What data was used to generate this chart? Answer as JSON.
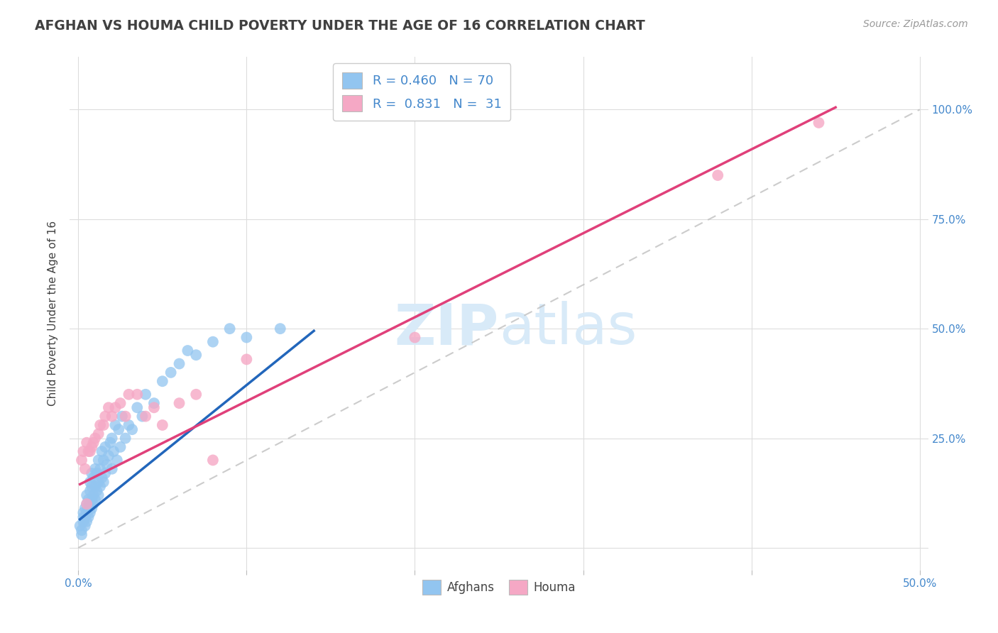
{
  "title": "AFGHAN VS HOUMA CHILD POVERTY UNDER THE AGE OF 16 CORRELATION CHART",
  "source": "Source: ZipAtlas.com",
  "ylabel": "Child Poverty Under the Age of 16",
  "xlim": [
    -0.005,
    0.505
  ],
  "ylim": [
    -0.05,
    1.12
  ],
  "xticks": [
    0.0,
    0.1,
    0.2,
    0.3,
    0.4,
    0.5
  ],
  "xticklabels": [
    "0.0%",
    "",
    "",
    "",
    "",
    "50.0%"
  ],
  "yticks": [
    0.0,
    0.25,
    0.5,
    0.75,
    1.0
  ],
  "yticklabels": [
    "",
    "25.0%",
    "50.0%",
    "75.0%",
    "100.0%"
  ],
  "afghan_R": 0.46,
  "afghan_N": 70,
  "houma_R": 0.831,
  "houma_N": 31,
  "afghan_color": "#92C5F0",
  "houma_color": "#F5A8C5",
  "afghan_line_color": "#2266BB",
  "houma_line_color": "#E0407A",
  "ref_line_color": "#BBBBBB",
  "grid_color": "#DDDDDD",
  "title_color": "#404040",
  "axis_label_color": "#4488CC",
  "watermark_color": "#D8EAF8",
  "legend_label1": "Afghans",
  "legend_label2": "Houma",
  "afghan_x": [
    0.001,
    0.002,
    0.002,
    0.003,
    0.003,
    0.003,
    0.004,
    0.004,
    0.004,
    0.005,
    0.005,
    0.005,
    0.005,
    0.006,
    0.006,
    0.006,
    0.007,
    0.007,
    0.007,
    0.007,
    0.008,
    0.008,
    0.008,
    0.008,
    0.009,
    0.009,
    0.009,
    0.01,
    0.01,
    0.01,
    0.011,
    0.011,
    0.012,
    0.012,
    0.012,
    0.013,
    0.013,
    0.014,
    0.014,
    0.015,
    0.015,
    0.016,
    0.016,
    0.017,
    0.018,
    0.019,
    0.02,
    0.02,
    0.021,
    0.022,
    0.023,
    0.024,
    0.025,
    0.026,
    0.028,
    0.03,
    0.032,
    0.035,
    0.038,
    0.04,
    0.045,
    0.05,
    0.055,
    0.06,
    0.065,
    0.07,
    0.08,
    0.09,
    0.1,
    0.12
  ],
  "afghan_y": [
    0.05,
    0.03,
    0.04,
    0.06,
    0.07,
    0.08,
    0.05,
    0.07,
    0.09,
    0.06,
    0.08,
    0.1,
    0.12,
    0.07,
    0.09,
    0.11,
    0.08,
    0.1,
    0.13,
    0.15,
    0.09,
    0.11,
    0.14,
    0.17,
    0.1,
    0.12,
    0.16,
    0.11,
    0.14,
    0.18,
    0.13,
    0.17,
    0.12,
    0.15,
    0.2,
    0.14,
    0.18,
    0.16,
    0.22,
    0.15,
    0.2,
    0.17,
    0.23,
    0.19,
    0.21,
    0.24,
    0.18,
    0.25,
    0.22,
    0.28,
    0.2,
    0.27,
    0.23,
    0.3,
    0.25,
    0.28,
    0.27,
    0.32,
    0.3,
    0.35,
    0.33,
    0.38,
    0.4,
    0.42,
    0.45,
    0.44,
    0.47,
    0.5,
    0.48,
    0.5
  ],
  "houma_x": [
    0.002,
    0.003,
    0.004,
    0.005,
    0.005,
    0.006,
    0.007,
    0.008,
    0.009,
    0.01,
    0.012,
    0.013,
    0.015,
    0.016,
    0.018,
    0.02,
    0.022,
    0.025,
    0.028,
    0.03,
    0.035,
    0.04,
    0.045,
    0.05,
    0.06,
    0.07,
    0.08,
    0.1,
    0.2,
    0.38,
    0.44
  ],
  "houma_y": [
    0.2,
    0.22,
    0.18,
    0.1,
    0.24,
    0.22,
    0.22,
    0.23,
    0.24,
    0.25,
    0.26,
    0.28,
    0.28,
    0.3,
    0.32,
    0.3,
    0.32,
    0.33,
    0.3,
    0.35,
    0.35,
    0.3,
    0.32,
    0.28,
    0.33,
    0.35,
    0.2,
    0.43,
    0.48,
    0.85,
    0.97
  ],
  "afghan_line_x": [
    0.001,
    0.14
  ],
  "afghan_line_y": [
    0.065,
    0.495
  ],
  "houma_line_x": [
    0.001,
    0.45
  ],
  "houma_line_y": [
    0.145,
    1.005
  ]
}
